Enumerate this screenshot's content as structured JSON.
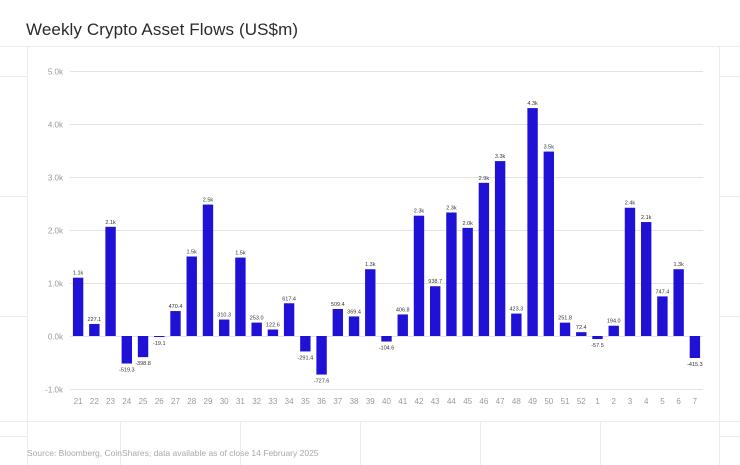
{
  "title": "Weekly Crypto Asset Flows (US$m)",
  "source": "Source: Bloomberg, CoinShares, data available as of close 14 February 2025",
  "chart_data": {
    "type": "bar",
    "title": "Weekly Crypto Asset Flows (US$m)",
    "xlabel": "",
    "ylabel": "",
    "ylim": [
      -1000,
      5000
    ],
    "yticks": [
      -1000,
      0,
      1000,
      2000,
      3000,
      4000,
      5000
    ],
    "ytick_labels": [
      "-1.0k",
      "0.0k",
      "1.0k",
      "2.0k",
      "3.0k",
      "4.0k",
      "5.0k"
    ],
    "grid": true,
    "bar_color": "#1f12d6",
    "categories": [
      "21",
      "22",
      "23",
      "24",
      "25",
      "26",
      "27",
      "28",
      "29",
      "30",
      "31",
      "32",
      "33",
      "34",
      "35",
      "36",
      "37",
      "38",
      "39",
      "40",
      "41",
      "42",
      "43",
      "44",
      "45",
      "46",
      "47",
      "48",
      "49",
      "50",
      "51",
      "52",
      "1",
      "2",
      "3",
      "4",
      "5",
      "6",
      "7"
    ],
    "values": [
      1100,
      227.1,
      2060,
      -519.3,
      -398.8,
      -19.1,
      470.4,
      1500,
      2480,
      310.3,
      1480,
      253,
      122.6,
      617.4,
      -291.4,
      -727.6,
      509.4,
      369.4,
      1260,
      -104.6,
      406.8,
      2270,
      938.7,
      2330,
      2040,
      2890,
      3300,
      423.3,
      4300,
      3480,
      251.8,
      72.4,
      -57.5,
      194,
      2420,
      2150,
      747.4,
      1260,
      -415.3
    ],
    "data_labels": [
      "1.1k",
      "227.1",
      "2.1k",
      "-519.3",
      "-398.8",
      "-19.1",
      "470.4",
      "1.5k",
      "2.5k",
      "310.3",
      "1.5k",
      "253.0",
      "122.6",
      "617.4",
      "-291.4",
      "-727.6",
      "509.4",
      "369.4",
      "1.3k",
      "-104.6",
      "406.8",
      "2.3k",
      "938.7",
      "2.3k",
      "2.0k",
      "2.9k",
      "3.3k",
      "423.3",
      "4.3k",
      "3.5k",
      "251.8",
      "72.4",
      "-57.5",
      "194.0",
      "2.4k",
      "2.1k",
      "747.4",
      "1.3k",
      "-415.3"
    ]
  }
}
